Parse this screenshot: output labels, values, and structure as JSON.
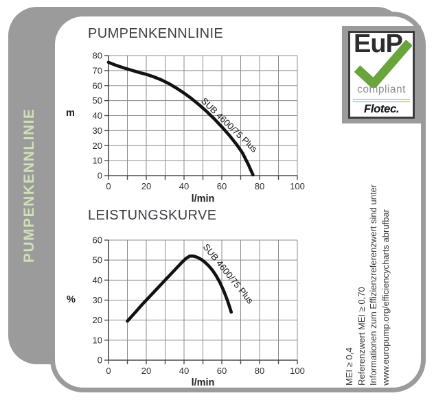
{
  "sidebar": {
    "vertical_label": "PUMPENKENNLINIE"
  },
  "badge": {
    "eup": "EuP",
    "compliant": "compliant",
    "brand": "Flotec.",
    "check_color": "#69a43c"
  },
  "note": {
    "lines": [
      "MEI ≥ 0,4",
      "Referenzwert MEI ≥ 0,70",
      "Informationen zum Effizienzreferenzwert sind unter",
      "www.europump.org/efficiencycharts abrufbar"
    ]
  },
  "colors": {
    "backdrop_gray": "#9b9b9b",
    "pale_green_label": "#cfe0b5",
    "curve_black": "#121212",
    "grid_gray": "#8c8c8c"
  },
  "chart_data": [
    {
      "type": "line",
      "title": "PUMPENKENNLINIE",
      "xlabel": "l/min",
      "ylabel": "m",
      "xlim": [
        0,
        100
      ],
      "ylim": [
        0,
        80
      ],
      "x_grid_step": 10,
      "x_label_step": 20,
      "y_step": 10,
      "grid": true,
      "legend": "inline-rotated-label",
      "series": [
        {
          "name": "SUB 4600/75 Plus",
          "points": [
            [
              0,
              75.5
            ],
            [
              4,
              73.5
            ],
            [
              8,
              71.8
            ],
            [
              12,
              70.3
            ],
            [
              16,
              68.8
            ],
            [
              20,
              67.5
            ],
            [
              24,
              65.8
            ],
            [
              28,
              63.8
            ],
            [
              32,
              61.3
            ],
            [
              36,
              58.3
            ],
            [
              40,
              55
            ],
            [
              44,
              51.3
            ],
            [
              48,
              47.2
            ],
            [
              52,
              42.7
            ],
            [
              56,
              37.8
            ],
            [
              60,
              32.5
            ],
            [
              64,
              26.8
            ],
            [
              68,
              20.5
            ],
            [
              71,
              15
            ],
            [
              74,
              7.5
            ],
            [
              76.5,
              0.5
            ]
          ]
        }
      ]
    },
    {
      "type": "line",
      "title": "LEISTUNGSKURVE",
      "xlabel": "l/min",
      "ylabel": "%",
      "xlim": [
        0,
        100
      ],
      "ylim": [
        0,
        60
      ],
      "x_grid_step": 10,
      "x_label_step": 20,
      "y_step": 10,
      "grid": true,
      "legend": "inline-rotated-label",
      "series": [
        {
          "name": "SUB 4600/75 Plus",
          "points": [
            [
              10,
              19.5
            ],
            [
              14,
              23.7
            ],
            [
              18,
              28
            ],
            [
              22,
              32
            ],
            [
              26,
              36
            ],
            [
              30,
              40
            ],
            [
              33,
              43
            ],
            [
              36,
              46
            ],
            [
              39,
              49
            ],
            [
              41,
              50.8
            ],
            [
              43,
              52
            ],
            [
              45,
              52
            ],
            [
              47,
              51.4
            ],
            [
              49,
              50.4
            ],
            [
              51,
              49
            ],
            [
              53,
              47.2
            ],
            [
              55,
              45
            ],
            [
              57,
              42.2
            ],
            [
              59,
              38.8
            ],
            [
              61,
              34.7
            ],
            [
              63,
              29.8
            ],
            [
              65,
              24
            ]
          ]
        }
      ]
    }
  ]
}
